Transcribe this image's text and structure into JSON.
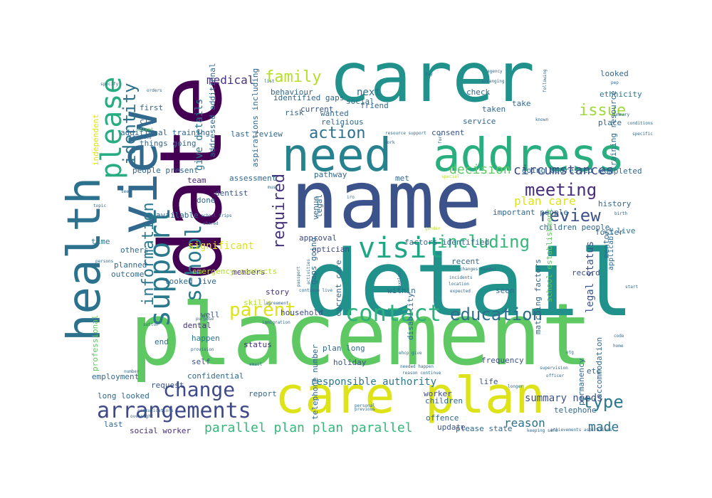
{
  "words": [
    {
      "text": "placement",
      "color": "#5ec962"
    },
    {
      "text": "detail",
      "color": "#21918c"
    },
    {
      "text": "name",
      "color": "#3b528b"
    },
    {
      "text": "carer",
      "color": "#21918c"
    },
    {
      "text": "date",
      "color": "#440154"
    },
    {
      "text": "care plan",
      "color": "#dde318"
    },
    {
      "text": "address",
      "color": "#29af7f"
    },
    {
      "text": "need",
      "color": "#26828e"
    },
    {
      "text": "health",
      "color": "#2c728e"
    },
    {
      "text": "view",
      "color": "#31688e"
    },
    {
      "text": "support",
      "color": "#2a788e"
    },
    {
      "text": "please",
      "color": "#27ad81"
    },
    {
      "text": "visit",
      "color": "#21a685"
    },
    {
      "text": "contact",
      "color": "#2db27d"
    },
    {
      "text": "arrangements",
      "color": "#3e4989"
    },
    {
      "text": "parent",
      "color": "#dde318"
    },
    {
      "text": "education",
      "color": "#2e6e8e"
    },
    {
      "text": "meeting",
      "color": "#472d7b"
    },
    {
      "text": "review",
      "color": "#3b528b"
    },
    {
      "text": "change",
      "color": "#3e4a89"
    },
    {
      "text": "including",
      "color": "#35b779"
    },
    {
      "text": "school",
      "color": "#2a788e"
    },
    {
      "text": "identity",
      "color": "#2c728e"
    },
    {
      "text": "family",
      "color": "#b5de2b"
    },
    {
      "text": "issue",
      "color": "#9fda3a"
    },
    {
      "text": "action",
      "color": "#2c728e"
    },
    {
      "text": "type",
      "color": "#2a788e"
    },
    {
      "text": "made",
      "color": "#2c728e"
    },
    {
      "text": "information",
      "color": "#2a788e"
    },
    {
      "text": "required",
      "color": "#46337e"
    },
    {
      "text": "circumstances",
      "color": "#3e4989"
    },
    {
      "text": "decision",
      "color": "#5ec962"
    },
    {
      "text": "plan care",
      "color": "#dde318"
    },
    {
      "text": "parallel plan plan parallel",
      "color": "#35b779"
    },
    {
      "text": "medical",
      "color": "#46327e"
    },
    {
      "text": "next",
      "color": "#2e6e8e"
    },
    {
      "text": "reason",
      "color": "#2c728e"
    },
    {
      "text": "give details",
      "color": "#2a788e"
    },
    {
      "text": "significant",
      "color": "#dde318"
    },
    {
      "text": "legal status",
      "color": "#3b528b"
    },
    {
      "text": "responsible authority",
      "color": "#2a788e"
    },
    {
      "text": "summary needs",
      "color": "#3b528b"
    },
    {
      "text": "social worker",
      "color": "#472d7b"
    },
    {
      "text": "last review",
      "color": "#31688e"
    },
    {
      "text": "assessment",
      "color": "#31688e"
    },
    {
      "text": "approval",
      "color": "#3e4989"
    },
    {
      "text": "dentist",
      "color": "#3b528b"
    },
    {
      "text": "risk",
      "color": "#31688e"
    },
    {
      "text": "consent",
      "color": "#3b528b"
    },
    {
      "text": "history",
      "color": "#31688e"
    },
    {
      "text": "place",
      "color": "#31688e"
    },
    {
      "text": "ethnicity",
      "color": "#2a788e"
    },
    {
      "text": "looked",
      "color": "#31688e"
    },
    {
      "text": "check",
      "color": "#31688e"
    },
    {
      "text": "current",
      "color": "#3b528b"
    },
    {
      "text": "behaviour",
      "color": "#31688e"
    },
    {
      "text": "available",
      "color": "#31688e"
    },
    {
      "text": "team",
      "color": "#482878"
    },
    {
      "text": "others",
      "color": "#31688e"
    },
    {
      "text": "story",
      "color": "#46327e"
    },
    {
      "text": "skills",
      "color": "#b5de2b"
    },
    {
      "text": "live",
      "color": "#2a788e"
    },
    {
      "text": "self",
      "color": "#3b528b"
    },
    {
      "text": "worker",
      "color": "#3e4989"
    },
    {
      "text": "service",
      "color": "#31688e"
    },
    {
      "text": "request",
      "color": "#3b528b"
    },
    {
      "text": "frequency",
      "color": "#3b528b"
    },
    {
      "text": "social",
      "color": "#2c728e"
    },
    {
      "text": "time",
      "color": "#2a788e"
    },
    {
      "text": "planned",
      "color": "#31688e"
    },
    {
      "text": "outcome",
      "color": "#31688e"
    },
    {
      "text": "optician",
      "color": "#3e4989"
    },
    {
      "text": "household",
      "color": "#3e4989"
    },
    {
      "text": "recent",
      "color": "#31688e"
    },
    {
      "text": "taken",
      "color": "#31688e"
    },
    {
      "text": "take",
      "color": "#31688e"
    },
    {
      "text": "members",
      "color": "#482878"
    },
    {
      "text": "professional",
      "color": "#5ec962"
    },
    {
      "text": "holiday",
      "color": "#3b528b"
    },
    {
      "text": "well",
      "color": "#3b528b"
    },
    {
      "text": "dental",
      "color": "#46327e"
    },
    {
      "text": "end",
      "color": "#31688e"
    },
    {
      "text": "status",
      "color": "#46327e"
    },
    {
      "text": "happen",
      "color": "#2a788e"
    },
    {
      "text": "confidential",
      "color": "#31688e"
    },
    {
      "text": "last",
      "color": "#31688e"
    },
    {
      "text": "update",
      "color": "#3b528b"
    },
    {
      "text": "offence",
      "color": "#31688e"
    },
    {
      "text": "please state",
      "color": "#31688e"
    },
    {
      "text": "long looked",
      "color": "#31688e"
    },
    {
      "text": "within",
      "color": "#31688e"
    },
    {
      "text": "etc",
      "color": "#31688e"
    },
    {
      "text": "children",
      "color": "#31688e"
    },
    {
      "text": "life",
      "color": "#3b528b"
    },
    {
      "text": "record",
      "color": "#3b528b"
    },
    {
      "text": "plan long",
      "color": "#31688e"
    },
    {
      "text": "first",
      "color": "#31688e"
    },
    {
      "text": "cla",
      "color": "#31688e"
    },
    {
      "text": "done",
      "color": "#31688e"
    },
    {
      "text": "seen",
      "color": "#31688e"
    },
    {
      "text": "going addressed",
      "color": "#31688e"
    },
    {
      "text": "completed",
      "color": "#31688e"
    },
    {
      "text": "applicable",
      "color": "#31688e"
    },
    {
      "text": "important people",
      "color": "#31688e"
    },
    {
      "text": "children people",
      "color": "#31688e"
    },
    {
      "text": "factors identified",
      "color": "#31688e"
    },
    {
      "text": "people present",
      "color": "#31688e"
    },
    {
      "text": "looked live",
      "color": "#31688e"
    },
    {
      "text": "report",
      "color": "#31688e"
    },
    {
      "text": "emergency contacts",
      "color": "#b5de2b"
    },
    {
      "text": "things going",
      "color": "#31688e"
    },
    {
      "text": "identified gaps",
      "color": "#31688e"
    },
    {
      "text": "wanted",
      "color": "#31688e"
    },
    {
      "text": "friend",
      "color": "#31688e"
    },
    {
      "text": "religious",
      "color": "#31688e"
    },
    {
      "text": "telephone",
      "color": "#31688e"
    },
    {
      "text": "telephone number",
      "color": "#31688e"
    },
    {
      "text": "accommodation",
      "color": "#31688e"
    },
    {
      "text": "permanency",
      "color": "#31688e"
    },
    {
      "text": "school establishment",
      "color": "#5ec962"
    },
    {
      "text": "matching factors",
      "color": "#31688e"
    },
    {
      "text": "gaps going",
      "color": "#31688e"
    },
    {
      "text": "current care",
      "color": "#31688e"
    },
    {
      "text": "disability",
      "color": "#31688e"
    },
    {
      "text": "employment",
      "color": "#31688e"
    },
    {
      "text": "independent",
      "color": "#dde318"
    },
    {
      "text": "addressed additional",
      "color": "#31688e"
    },
    {
      "text": "additional training",
      "color": "#31688e"
    },
    {
      "text": "training resource",
      "color": "#31688e"
    },
    {
      "text": "iro",
      "color": "#31688e"
    },
    {
      "text": "special",
      "color": "#b5de2b"
    },
    {
      "text": "gender",
      "color": "#b5de2b"
    },
    {
      "text": "met",
      "color": "#31688e"
    },
    {
      "text": "pathway",
      "color": "#31688e"
    },
    {
      "text": "aspirations including",
      "color": "#31688e"
    },
    {
      "text": "venue",
      "color": "#31688e"
    },
    {
      "text": "legal",
      "color": "#31688e"
    },
    {
      "text": "foster",
      "color": "#31688e"
    },
    {
      "text": "mentor",
      "color": "#31688e"
    },
    {
      "text": "birth",
      "color": "#31688e"
    },
    {
      "text": "pep",
      "color": "#31688e"
    },
    {
      "text": "summary",
      "color": "#31688e"
    },
    {
      "text": "conditions",
      "color": "#31688e"
    },
    {
      "text": "specific",
      "color": "#31688e"
    },
    {
      "text": "known",
      "color": "#31688e"
    },
    {
      "text": "day",
      "color": "#31688e"
    },
    {
      "text": "agency",
      "color": "#31688e"
    },
    {
      "text": "specify",
      "color": "#31688e"
    },
    {
      "text": "orders",
      "color": "#31688e"
    },
    {
      "text": "attend",
      "color": "#5ec962"
    },
    {
      "text": "agreed",
      "color": "#31688e"
    },
    {
      "text": "see",
      "color": "#31688e"
    },
    {
      "text": "persons",
      "color": "#31688e"
    },
    {
      "text": "shared",
      "color": "#31688e"
    },
    {
      "text": "school trips",
      "color": "#31688e"
    },
    {
      "text": "sutton",
      "color": "#31688e"
    },
    {
      "text": "purpose",
      "color": "#31688e"
    },
    {
      "text": "agreement",
      "color": "#31688e"
    },
    {
      "text": "immigration",
      "color": "#31688e"
    },
    {
      "text": "changes needed",
      "color": "#31688e"
    },
    {
      "text": "incidents",
      "color": "#31688e"
    },
    {
      "text": "location",
      "color": "#31688e"
    },
    {
      "text": "expected",
      "color": "#31688e"
    },
    {
      "text": "explain",
      "color": "#31688e"
    },
    {
      "text": "activities",
      "color": "#31688e"
    },
    {
      "text": "passport",
      "color": "#31688e"
    },
    {
      "text": "continue live",
      "color": "#31688e"
    },
    {
      "text": "form",
      "color": "#31688e"
    },
    {
      "text": "resource support",
      "color": "#31688e"
    },
    {
      "text": "work",
      "color": "#31688e"
    },
    {
      "text": "arranging",
      "color": "#31688e"
    },
    {
      "text": "following",
      "color": "#31688e"
    },
    {
      "text": "ehcp give",
      "color": "#31688e"
    },
    {
      "text": "needed happen",
      "color": "#31688e"
    },
    {
      "text": "reason continue",
      "color": "#31688e"
    },
    {
      "text": "previous",
      "color": "#31688e"
    },
    {
      "text": "personal",
      "color": "#31688e"
    },
    {
      "text": "email",
      "color": "#31688e"
    },
    {
      "text": "provision",
      "color": "#31688e"
    },
    {
      "text": "number",
      "color": "#31688e"
    },
    {
      "text": "overnight",
      "color": "#31688e"
    },
    {
      "text": "communications",
      "color": "#31688e"
    },
    {
      "text": "achievements aspirations",
      "color": "#31688e"
    },
    {
      "text": "keeping safe",
      "color": "#31688e"
    },
    {
      "text": "supervision",
      "color": "#31688e"
    },
    {
      "text": "officer",
      "color": "#31688e"
    },
    {
      "text": "longer",
      "color": "#31688e"
    },
    {
      "text": "etg",
      "color": "#31688e"
    },
    {
      "text": "code",
      "color": "#31688e"
    },
    {
      "text": "home",
      "color": "#31688e"
    },
    {
      "text": "part",
      "color": "#31688e"
    },
    {
      "text": "must",
      "color": "#31688e"
    },
    {
      "text": "list",
      "color": "#31688e"
    },
    {
      "text": "start",
      "color": "#31688e"
    },
    {
      "text": "topic",
      "color": "#31688e"
    },
    {
      "text": "stay things",
      "color": "#31688e"
    }
  ]
}
